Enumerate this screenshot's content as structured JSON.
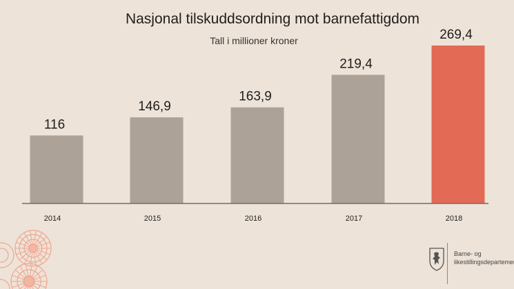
{
  "chart_data": {
    "type": "bar",
    "title": "Nasjonal tilskuddsordning mot barnefattigdom",
    "subtitle": "Tall i millioner kroner",
    "categories": [
      "2014",
      "2015",
      "2016",
      "2017",
      "2018"
    ],
    "values": [
      116,
      146.9,
      163.9,
      219.4,
      269.4
    ],
    "value_labels": [
      "116",
      "146,9",
      "163,9",
      "219,4",
      "269,4"
    ],
    "ylim": [
      0,
      280
    ],
    "grid": false,
    "colors": [
      "#aca297",
      "#aca297",
      "#aca297",
      "#aca297",
      "#e36a54"
    ]
  },
  "colors": {
    "background": "#ede3d8",
    "bar": "#aca297",
    "highlight": "#e36a54",
    "axis": "#6e6e6e"
  },
  "footer": {
    "department": "Barne- og\nlikestillingsdepartementet",
    "logo_icon": "norwegian-lion-coat-of-arms"
  }
}
